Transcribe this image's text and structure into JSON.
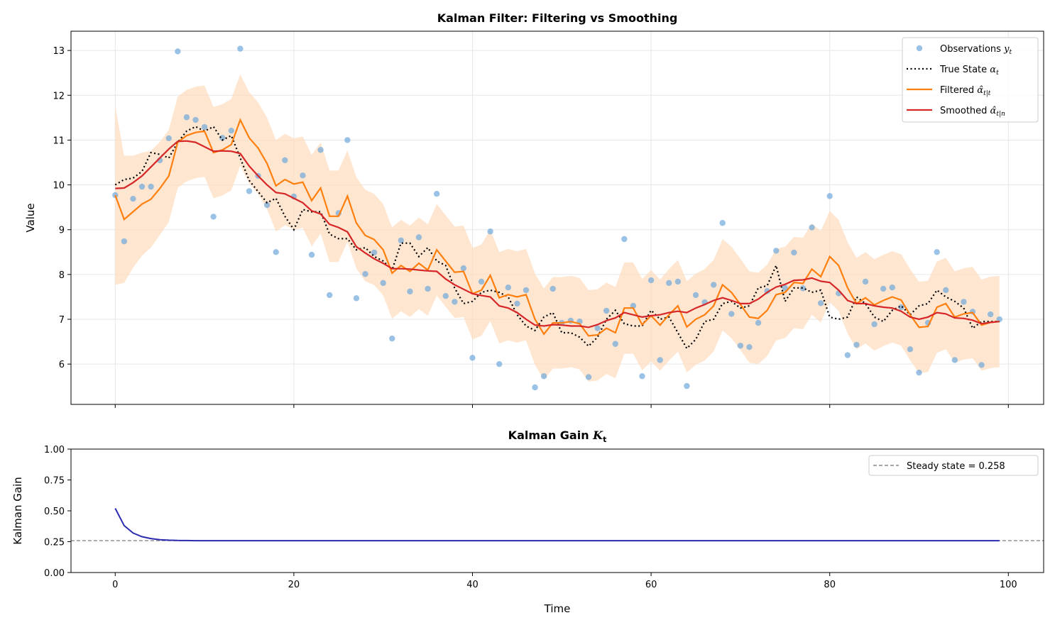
{
  "chart_data": [
    {
      "type": "line",
      "title": "Kalman Filter: Filtering vs Smoothing",
      "xlabel": "",
      "ylabel": "Value",
      "xlim": [
        -4.95,
        103.95
      ],
      "ylim": [
        5.1,
        13.43
      ],
      "xticks": [
        0,
        20,
        40,
        60,
        80,
        100
      ],
      "yticks": [
        6,
        7,
        8,
        9,
        10,
        11,
        12,
        13
      ],
      "grid": true,
      "legend_position": "top-right",
      "colors": {
        "observations": "#6fa8dc",
        "true_state": "#000000",
        "filtered": "#ff7f0e",
        "smoothed": "#d62728",
        "band": "#ffdcbc"
      },
      "legend": [
        {
          "text": "Observations ",
          "math": "y",
          "sub": "t"
        },
        {
          "text": "True State ",
          "math": "α",
          "sub": "t"
        },
        {
          "text": "Filtered ",
          "math": "α̂",
          "sub": "t|t"
        },
        {
          "text": "Smoothed ",
          "math": "α̂",
          "sub": "t|n"
        }
      ],
      "observations": [
        9.77,
        8.74,
        9.69,
        9.96,
        9.96,
        10.55,
        11.04,
        12.98,
        11.51,
        11.45,
        11.29,
        9.29,
        11.05,
        11.21,
        13.04,
        9.86,
        10.2,
        9.55,
        8.5,
        10.55,
        9.74,
        10.21,
        8.44,
        10.78,
        7.54,
        9.37,
        11.0,
        7.47,
        8.01,
        8.49,
        7.81,
        6.57,
        8.76,
        7.62,
        8.83,
        7.68,
        9.8,
        7.52,
        7.39,
        8.14,
        6.14,
        7.84,
        8.96,
        6.0,
        7.71,
        7.35,
        7.65,
        5.48,
        5.73,
        7.68,
        6.92,
        6.97,
        6.95,
        5.71,
        6.8,
        7.19,
        6.45,
        8.79,
        7.3,
        5.73,
        7.87,
        6.09,
        7.81,
        7.84,
        5.51,
        7.54,
        7.38,
        7.77,
        9.15,
        7.12,
        6.41,
        6.38,
        6.92,
        7.63,
        8.53,
        7.7,
        8.49,
        7.69,
        9.05,
        7.36,
        9.75,
        7.58,
        6.2,
        6.43,
        7.84,
        6.89,
        7.68,
        7.71,
        7.27,
        6.33,
        5.81,
        6.92,
        8.5,
        7.65,
        6.09,
        7.39,
        7.17,
        5.98,
        7.11,
        7.0
      ],
      "true_state": [
        10.0,
        10.12,
        10.15,
        10.3,
        10.72,
        10.68,
        10.6,
        10.95,
        11.2,
        11.3,
        11.2,
        11.3,
        11.0,
        11.1,
        10.6,
        10.1,
        9.85,
        9.6,
        9.7,
        9.3,
        9.0,
        9.45,
        9.4,
        9.4,
        8.9,
        8.8,
        8.8,
        8.55,
        8.6,
        8.4,
        8.3,
        8.1,
        8.7,
        8.7,
        8.4,
        8.6,
        8.3,
        8.2,
        7.7,
        7.35,
        7.4,
        7.6,
        7.65,
        7.6,
        7.5,
        7.1,
        6.85,
        6.75,
        7.05,
        7.15,
        6.7,
        6.7,
        6.6,
        6.4,
        6.6,
        7.0,
        7.2,
        6.9,
        6.85,
        6.85,
        7.2,
        7.0,
        7.05,
        6.7,
        6.35,
        6.55,
        6.95,
        7.0,
        7.35,
        7.4,
        7.25,
        7.3,
        7.7,
        7.75,
        8.2,
        7.4,
        7.7,
        7.7,
        7.6,
        7.65,
        7.05,
        7.0,
        7.05,
        7.5,
        7.35,
        7.05,
        6.95,
        7.2,
        7.3,
        7.1,
        7.3,
        7.35,
        7.65,
        7.5,
        7.4,
        7.25,
        6.8,
        6.95,
        6.95,
        6.95
      ],
      "filtered": [
        9.77,
        9.23,
        9.4,
        9.57,
        9.68,
        9.92,
        10.2,
        10.95,
        11.1,
        11.17,
        11.2,
        10.72,
        10.78,
        10.9,
        11.45,
        11.05,
        10.82,
        10.48,
        9.98,
        10.12,
        10.02,
        10.06,
        9.65,
        9.93,
        9.3,
        9.3,
        9.75,
        9.15,
        8.87,
        8.78,
        8.55,
        8.03,
        8.2,
        8.07,
        8.25,
        8.1,
        8.55,
        8.3,
        8.05,
        8.07,
        7.57,
        7.65,
        7.98,
        7.48,
        7.55,
        7.5,
        7.55,
        7.0,
        6.67,
        6.92,
        6.92,
        6.95,
        6.9,
        6.63,
        6.65,
        6.8,
        6.7,
        7.25,
        7.25,
        6.88,
        7.08,
        6.87,
        7.1,
        7.3,
        6.83,
        7.0,
        7.1,
        7.3,
        7.77,
        7.6,
        7.33,
        7.05,
        7.02,
        7.2,
        7.55,
        7.6,
        7.82,
        7.8,
        8.12,
        7.95,
        8.4,
        8.2,
        7.7,
        7.35,
        7.48,
        7.32,
        7.42,
        7.5,
        7.43,
        7.1,
        6.82,
        6.84,
        7.27,
        7.35,
        7.05,
        7.12,
        7.15,
        6.87,
        6.93,
        6.95
      ],
      "filtered_band_halfwidth": [
        2.0,
        1.42,
        1.25,
        1.15,
        1.08,
        1.04,
        1.03,
        1.02,
        1.02,
        1.02,
        1.02,
        1.02,
        1.02,
        1.02,
        1.02,
        1.02,
        1.02,
        1.02,
        1.02,
        1.02,
        1.02,
        1.02,
        1.02,
        1.02,
        1.02,
        1.02,
        1.02,
        1.02,
        1.02,
        1.02,
        1.02,
        1.02,
        1.02,
        1.02,
        1.02,
        1.02,
        1.02,
        1.02,
        1.02,
        1.02,
        1.02,
        1.02,
        1.02,
        1.02,
        1.02,
        1.02,
        1.02,
        1.02,
        1.02,
        1.02,
        1.02,
        1.02,
        1.02,
        1.02,
        1.02,
        1.02,
        1.02,
        1.02,
        1.02,
        1.02,
        1.02,
        1.02,
        1.02,
        1.02,
        1.02,
        1.02,
        1.02,
        1.02,
        1.02,
        1.02,
        1.02,
        1.02,
        1.02,
        1.02,
        1.02,
        1.02,
        1.02,
        1.02,
        1.02,
        1.02,
        1.02,
        1.02,
        1.02,
        1.02,
        1.02,
        1.02,
        1.02,
        1.02,
        1.02,
        1.02,
        1.02,
        1.02,
        1.02,
        1.02,
        1.02,
        1.02,
        1.02,
        1.02,
        1.02,
        1.02
      ],
      "smoothed": [
        9.92,
        9.93,
        10.05,
        10.2,
        10.4,
        10.6,
        10.8,
        10.97,
        10.98,
        10.95,
        10.85,
        10.75,
        10.76,
        10.75,
        10.7,
        10.42,
        10.2,
        10.0,
        9.83,
        9.8,
        9.7,
        9.6,
        9.42,
        9.35,
        9.12,
        9.05,
        8.95,
        8.62,
        8.48,
        8.35,
        8.25,
        8.13,
        8.13,
        8.12,
        8.1,
        8.08,
        8.07,
        7.9,
        7.77,
        7.67,
        7.57,
        7.53,
        7.5,
        7.3,
        7.25,
        7.15,
        7.0,
        6.87,
        6.85,
        6.88,
        6.87,
        6.85,
        6.85,
        6.82,
        6.88,
        6.97,
        7.03,
        7.15,
        7.1,
        7.05,
        7.08,
        7.1,
        7.15,
        7.18,
        7.15,
        7.25,
        7.33,
        7.42,
        7.48,
        7.42,
        7.35,
        7.35,
        7.45,
        7.6,
        7.72,
        7.78,
        7.87,
        7.88,
        7.92,
        7.85,
        7.82,
        7.65,
        7.42,
        7.35,
        7.35,
        7.3,
        7.27,
        7.25,
        7.18,
        7.05,
        7.0,
        7.05,
        7.15,
        7.12,
        7.03,
        7.02,
        6.98,
        6.9,
        6.93,
        6.95
      ]
    },
    {
      "type": "line",
      "title": "Kalman Gain ",
      "title_math": "K",
      "title_sub": "t",
      "xlabel": "Time",
      "ylabel": "Kalman Gain",
      "xlim": [
        -4.95,
        103.95
      ],
      "ylim": [
        0,
        1
      ],
      "xticks": [
        0,
        20,
        40,
        60,
        80,
        100
      ],
      "yticks": [
        "0.00",
        "0.25",
        "0.50",
        "0.75",
        "1.00"
      ],
      "legend_position": "top-right",
      "colors": {
        "gain": "#2b2bb0",
        "steady": "#888888"
      },
      "steady_state": 0.258,
      "steady_label": "Steady state = 0.258",
      "gain": [
        0.52,
        0.38,
        0.32,
        0.29,
        0.275,
        0.266,
        0.262,
        0.26,
        0.259,
        0.258,
        0.258,
        0.258,
        0.258,
        0.258,
        0.258,
        0.258,
        0.258,
        0.258,
        0.258,
        0.258,
        0.258,
        0.258,
        0.258,
        0.258,
        0.258,
        0.258,
        0.258,
        0.258,
        0.258,
        0.258,
        0.258,
        0.258,
        0.258,
        0.258,
        0.258,
        0.258,
        0.258,
        0.258,
        0.258,
        0.258,
        0.258,
        0.258,
        0.258,
        0.258,
        0.258,
        0.258,
        0.258,
        0.258,
        0.258,
        0.258,
        0.258,
        0.258,
        0.258,
        0.258,
        0.258,
        0.258,
        0.258,
        0.258,
        0.258,
        0.258,
        0.258,
        0.258,
        0.258,
        0.258,
        0.258,
        0.258,
        0.258,
        0.258,
        0.258,
        0.258,
        0.258,
        0.258,
        0.258,
        0.258,
        0.258,
        0.258,
        0.258,
        0.258,
        0.258,
        0.258,
        0.258,
        0.258,
        0.258,
        0.258,
        0.258,
        0.258,
        0.258,
        0.258,
        0.258,
        0.258,
        0.258,
        0.258,
        0.258,
        0.258,
        0.258,
        0.258,
        0.258,
        0.258,
        0.258,
        0.258
      ]
    }
  ]
}
